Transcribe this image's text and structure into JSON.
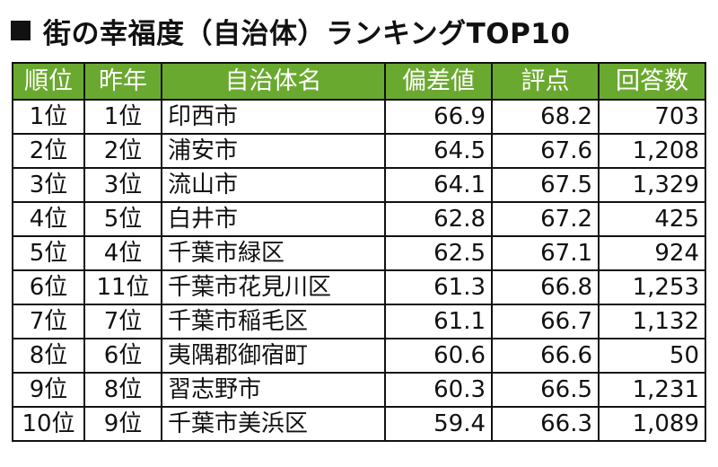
{
  "title": {
    "text": "街の幸福度（自治体）ランキングTOP10"
  },
  "table": {
    "headers": {
      "rank": "順位",
      "prev": "昨年",
      "name": "自治体名",
      "deviation": "偏差値",
      "score": "評点",
      "responses": "回答数"
    },
    "rows": [
      {
        "rank": "1位",
        "prev": "1位",
        "name": "印西市",
        "deviation": "66.9",
        "score": "68.2",
        "responses": "703"
      },
      {
        "rank": "2位",
        "prev": "2位",
        "name": "浦安市",
        "deviation": "64.5",
        "score": "67.6",
        "responses": "1,208"
      },
      {
        "rank": "3位",
        "prev": "3位",
        "name": "流山市",
        "deviation": "64.1",
        "score": "67.5",
        "responses": "1,329"
      },
      {
        "rank": "4位",
        "prev": "5位",
        "name": "白井市",
        "deviation": "62.8",
        "score": "67.2",
        "responses": "425"
      },
      {
        "rank": "5位",
        "prev": "4位",
        "name": "千葉市緑区",
        "deviation": "62.5",
        "score": "67.1",
        "responses": "924"
      },
      {
        "rank": "6位",
        "prev": "11位",
        "name": "千葉市花見川区",
        "deviation": "61.3",
        "score": "66.8",
        "responses": "1,253"
      },
      {
        "rank": "7位",
        "prev": "7位",
        "name": "千葉市稲毛区",
        "deviation": "61.1",
        "score": "66.7",
        "responses": "1,132"
      },
      {
        "rank": "8位",
        "prev": "6位",
        "name": "夷隅郡御宿町",
        "deviation": "60.6",
        "score": "66.6",
        "responses": "50"
      },
      {
        "rank": "9位",
        "prev": "8位",
        "name": "習志野市",
        "deviation": "60.3",
        "score": "66.5",
        "responses": "1,231"
      },
      {
        "rank": "10位",
        "prev": "9位",
        "name": "千葉市美浜区",
        "deviation": "59.4",
        "score": "66.3",
        "responses": "1,089"
      }
    ]
  },
  "colors": {
    "header_bg": "#6aa92f",
    "header_text": "#ffffff",
    "border": "#111111"
  },
  "icons": {
    "title_marker": "black-square-icon"
  }
}
